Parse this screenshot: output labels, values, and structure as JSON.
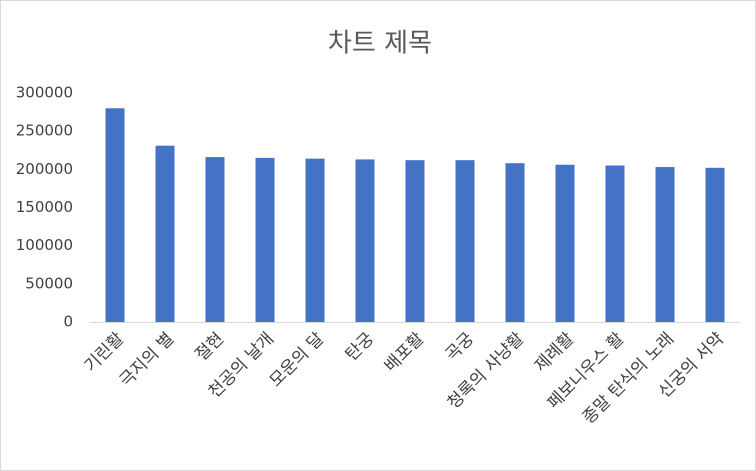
{
  "chart_data": {
    "type": "bar",
    "title": "차트 제목",
    "categories": [
      "기린활",
      "극지의 별",
      "절현",
      "천공의 날개",
      "모운의 달",
      "탄궁",
      "배포활",
      "곡궁",
      "청록의 사냥활",
      "제례활",
      "페보니우스 활",
      "종말 탄식의 노래",
      "신궁의 서약"
    ],
    "values": [
      280000,
      231000,
      216000,
      215000,
      214000,
      213000,
      212000,
      212000,
      208000,
      206000,
      205000,
      203000,
      202000
    ],
    "color": "#4472c4",
    "ylim": [
      0,
      300000
    ],
    "yticks": [
      0,
      50000,
      100000,
      150000,
      200000,
      250000,
      300000
    ],
    "grid": false
  }
}
